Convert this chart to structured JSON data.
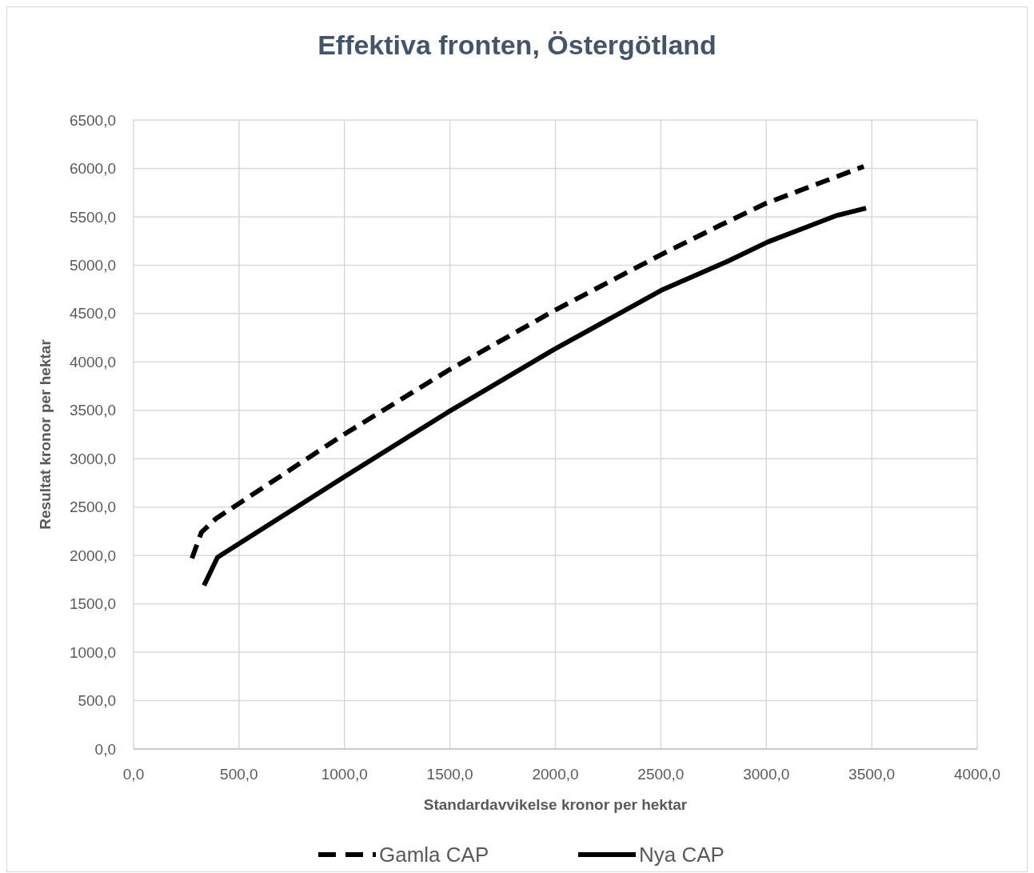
{
  "chart_data": {
    "type": "line",
    "title": "Effektiva fronten, Östergötland",
    "xlabel": "Standardavvikelse kronor per hektar",
    "ylabel": "Resultat kronor per hektar",
    "xlim": [
      0,
      4000
    ],
    "xticks": [
      {
        "value": 0,
        "label": "0,0"
      },
      {
        "value": 500,
        "label": "500,0"
      },
      {
        "value": 1000,
        "label": "1000,0"
      },
      {
        "value": 1500,
        "label": "1500,0"
      },
      {
        "value": 2000,
        "label": "2000,0"
      },
      {
        "value": 2500,
        "label": "2500,0"
      },
      {
        "value": 3000,
        "label": "3000,0"
      },
      {
        "value": 3500,
        "label": "3500,0"
      },
      {
        "value": 4000,
        "label": "4000,0"
      }
    ],
    "ylim": [
      0,
      6500
    ],
    "yticks": [
      {
        "value": 0,
        "label": "0,0"
      },
      {
        "value": 500,
        "label": "500,0"
      },
      {
        "value": 1000,
        "label": "1000,0"
      },
      {
        "value": 1500,
        "label": "1500,0"
      },
      {
        "value": 2000,
        "label": "2000,0"
      },
      {
        "value": 2500,
        "label": "2500,0"
      },
      {
        "value": 3000,
        "label": "3000,0"
      },
      {
        "value": 3500,
        "label": "3500,0"
      },
      {
        "value": 4000,
        "label": "4000,0"
      },
      {
        "value": 4500,
        "label": "4500,0"
      },
      {
        "value": 5000,
        "label": "5000,0"
      },
      {
        "value": 5500,
        "label": "5500,0"
      },
      {
        "value": 6000,
        "label": "6000,0"
      },
      {
        "value": 6500,
        "label": "6500,0"
      }
    ],
    "grid": true,
    "legend": "bottom",
    "series": [
      {
        "name": "Gamla CAP",
        "color": "#000000",
        "line_style": "dashed",
        "x": [
          277,
          322,
          390,
          997,
          1490,
          1994,
          2502,
          2779,
          2999,
          3462
        ],
        "values": [
          1970,
          2240,
          2380,
          3250,
          3910,
          4530,
          5110,
          5410,
          5640,
          6020
        ]
      },
      {
        "name": "Nya CAP",
        "color": "#000000",
        "line_style": "solid",
        "x": [
          334,
          398,
          997,
          1490,
          1994,
          2502,
          2817,
          3007,
          3329,
          3473
        ],
        "values": [
          1690,
          1980,
          2810,
          3480,
          4130,
          4740,
          5040,
          5240,
          5510,
          5590
        ]
      }
    ]
  }
}
